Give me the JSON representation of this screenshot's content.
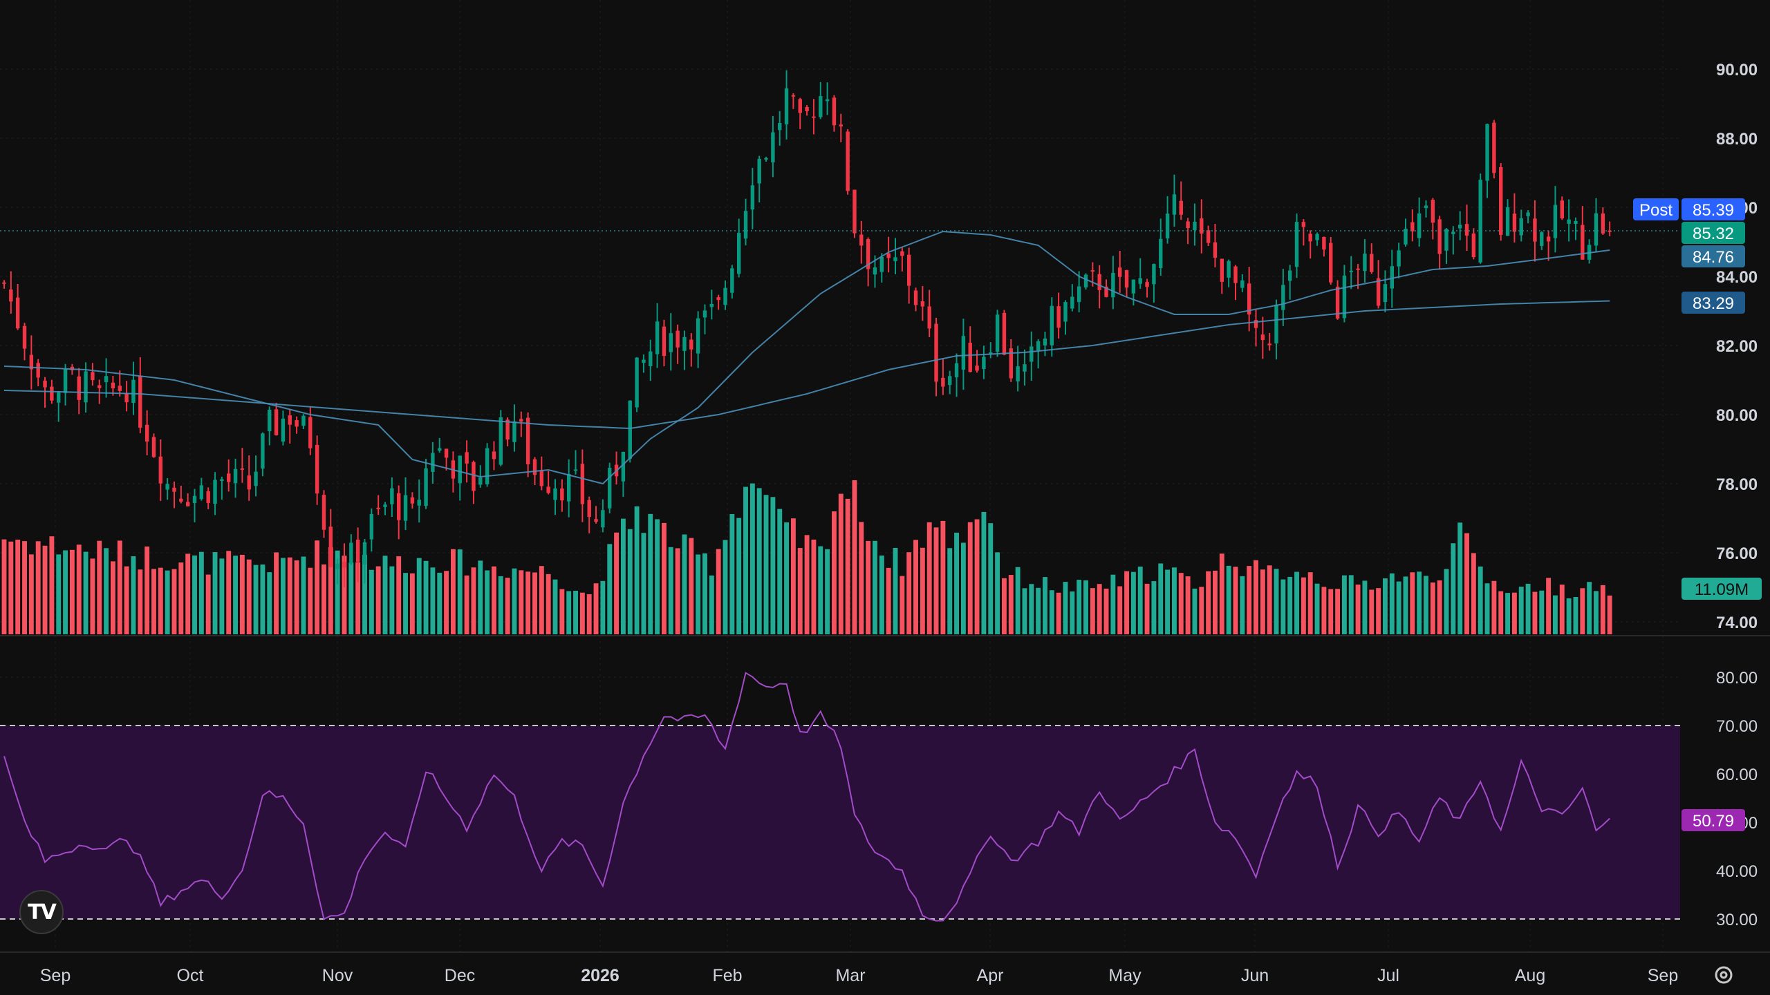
{
  "chart_data": [
    {
      "type": "candlestick",
      "panel": "price",
      "title": "",
      "y_range": [
        73.5,
        91.5
      ],
      "y_ticks": [
        "90.00",
        "88.00",
        "86.00",
        "84.00",
        "82.00",
        "80.00",
        "78.00",
        "76.00",
        "74.00"
      ],
      "x_labels": [
        {
          "label": "Sep",
          "bold": false
        },
        {
          "label": "Oct",
          "bold": false
        },
        {
          "label": "Nov",
          "bold": false
        },
        {
          "label": "Dec",
          "bold": false
        },
        {
          "label": "2026",
          "bold": true
        },
        {
          "label": "Feb",
          "bold": false
        },
        {
          "label": "Mar",
          "bold": false
        },
        {
          "label": "Apr",
          "bold": false
        },
        {
          "label": "May",
          "bold": false
        },
        {
          "label": "Jun",
          "bold": false
        },
        {
          "label": "Jul",
          "bold": false
        },
        {
          "label": "Aug",
          "bold": false
        },
        {
          "label": "Sep",
          "bold": false
        }
      ],
      "close_series": [
        [
          0,
          83.8
        ],
        [
          3,
          82.2
        ],
        [
          6,
          80.6
        ],
        [
          10,
          81.0
        ],
        [
          14,
          80.5
        ],
        [
          18,
          80.9
        ],
        [
          21,
          79.6
        ],
        [
          24,
          78.0
        ],
        [
          28,
          77.7
        ],
        [
          32,
          78.1
        ],
        [
          36,
          77.9
        ],
        [
          39,
          79.6
        ],
        [
          42,
          80.0
        ],
        [
          45,
          79.3
        ],
        [
          48,
          76.0
        ],
        [
          51,
          75.8
        ],
        [
          54,
          76.8
        ],
        [
          57,
          77.6
        ],
        [
          60,
          77.0
        ],
        [
          63,
          79.1
        ],
        [
          66,
          78.6
        ],
        [
          69,
          78.0
        ],
        [
          72,
          79.2
        ],
        [
          75,
          79.9
        ],
        [
          78,
          78.3
        ],
        [
          81,
          78.1
        ],
        [
          84,
          77.9
        ],
        [
          87,
          76.8
        ],
        [
          90,
          78.5
        ],
        [
          93,
          81.1
        ],
        [
          96,
          82.2
        ],
        [
          99,
          82.3
        ],
        [
          102,
          82.5
        ],
        [
          105,
          83.0
        ],
        [
          107,
          84.6
        ],
        [
          110,
          87.1
        ],
        [
          113,
          88.0
        ],
        [
          115,
          89.2
        ],
        [
          117,
          88.2
        ],
        [
          119,
          89.0
        ],
        [
          121,
          89.5
        ],
        [
          123,
          87.9
        ],
        [
          125,
          85.5
        ],
        [
          127,
          84.6
        ],
        [
          129,
          84.1
        ],
        [
          132,
          84.4
        ],
        [
          135,
          82.9
        ],
        [
          137,
          81.3
        ],
        [
          139,
          81.2
        ],
        [
          141,
          81.8
        ],
        [
          143,
          81.5
        ],
        [
          146,
          82.7
        ],
        [
          148,
          81.3
        ],
        [
          150,
          81.0
        ],
        [
          152,
          82.1
        ],
        [
          155,
          82.9
        ],
        [
          158,
          83.5
        ],
        [
          161,
          83.9
        ],
        [
          164,
          83.6
        ],
        [
          167,
          83.8
        ],
        [
          170,
          84.9
        ],
        [
          173,
          86.3
        ],
        [
          176,
          84.9
        ],
        [
          179,
          84.3
        ],
        [
          182,
          83.4
        ],
        [
          184,
          82.0
        ],
        [
          186,
          82.4
        ],
        [
          188,
          83.5
        ],
        [
          190,
          85.1
        ],
        [
          193,
          85.0
        ],
        [
          196,
          83.2
        ],
        [
          199,
          84.5
        ],
        [
          202,
          83.5
        ],
        [
          205,
          85.3
        ],
        [
          207,
          85.0
        ],
        [
          209,
          86.0
        ],
        [
          211,
          84.5
        ],
        [
          213,
          85.6
        ],
        [
          216,
          84.9
        ],
        [
          218,
          88.0
        ],
        [
          220,
          85.4
        ],
        [
          223,
          86.0
        ],
        [
          226,
          85.2
        ],
        [
          229,
          85.7
        ],
        [
          232,
          85.0
        ],
        [
          234,
          85.6
        ],
        [
          236,
          85.32
        ]
      ],
      "ma_50": [
        [
          0,
          81.4
        ],
        [
          12,
          81.3
        ],
        [
          25,
          81.0
        ],
        [
          35,
          80.5
        ],
        [
          45,
          80.0
        ],
        [
          55,
          79.7
        ],
        [
          60,
          78.7
        ],
        [
          70,
          78.2
        ],
        [
          80,
          78.4
        ],
        [
          88,
          78.0
        ],
        [
          95,
          79.3
        ],
        [
          102,
          80.2
        ],
        [
          110,
          81.8
        ],
        [
          120,
          83.5
        ],
        [
          130,
          84.7
        ],
        [
          138,
          85.3
        ],
        [
          145,
          85.2
        ],
        [
          152,
          84.9
        ],
        [
          158,
          84.0
        ],
        [
          165,
          83.4
        ],
        [
          172,
          82.9
        ],
        [
          180,
          82.9
        ],
        [
          188,
          83.2
        ],
        [
          195,
          83.6
        ],
        [
          203,
          83.9
        ],
        [
          210,
          84.2
        ],
        [
          218,
          84.3
        ],
        [
          226,
          84.5
        ],
        [
          236,
          84.76
        ]
      ],
      "ma_200": [
        [
          0,
          80.7
        ],
        [
          20,
          80.6
        ],
        [
          40,
          80.3
        ],
        [
          60,
          80.0
        ],
        [
          80,
          79.7
        ],
        [
          92,
          79.6
        ],
        [
          105,
          80.0
        ],
        [
          118,
          80.6
        ],
        [
          130,
          81.3
        ],
        [
          140,
          81.7
        ],
        [
          150,
          81.8
        ],
        [
          160,
          82.0
        ],
        [
          170,
          82.3
        ],
        [
          180,
          82.6
        ],
        [
          190,
          82.8
        ],
        [
          200,
          83.0
        ],
        [
          210,
          83.1
        ],
        [
          220,
          83.2
        ],
        [
          236,
          83.29
        ]
      ],
      "price_labels": [
        {
          "tag": "Post",
          "value": "85.39",
          "color": "#2962ff"
        },
        {
          "value": "85.32",
          "color": "#089981"
        },
        {
          "value": "84.76",
          "color": "#2a6f97"
        },
        {
          "value": "83.29",
          "color": "#1f5a8a"
        }
      ],
      "last_close": 85.32
    },
    {
      "type": "bar",
      "panel": "volume",
      "last_volume_label": "11.09M",
      "relative_heights": [
        [
          0,
          0.62
        ],
        [
          10,
          0.55
        ],
        [
          20,
          0.5
        ],
        [
          30,
          0.46
        ],
        [
          40,
          0.45
        ],
        [
          48,
          0.55
        ],
        [
          56,
          0.45
        ],
        [
          64,
          0.48
        ],
        [
          72,
          0.43
        ],
        [
          80,
          0.4
        ],
        [
          86,
          0.25
        ],
        [
          90,
          0.58
        ],
        [
          93,
          0.8
        ],
        [
          95,
          0.72
        ],
        [
          100,
          0.55
        ],
        [
          104,
          0.45
        ],
        [
          108,
          0.88
        ],
        [
          110,
          1.0
        ],
        [
          112,
          0.85
        ],
        [
          114,
          0.7
        ],
        [
          117,
          0.6
        ],
        [
          120,
          0.52
        ],
        [
          123,
          0.95
        ],
        [
          126,
          0.8
        ],
        [
          129,
          0.52
        ],
        [
          132,
          0.45
        ],
        [
          136,
          0.7
        ],
        [
          140,
          0.6
        ],
        [
          144,
          0.85
        ],
        [
          147,
          0.4
        ],
        [
          150,
          0.35
        ],
        [
          155,
          0.3
        ],
        [
          160,
          0.3
        ],
        [
          165,
          0.35
        ],
        [
          170,
          0.42
        ],
        [
          175,
          0.32
        ],
        [
          180,
          0.5
        ],
        [
          185,
          0.38
        ],
        [
          190,
          0.42
        ],
        [
          195,
          0.33
        ],
        [
          200,
          0.32
        ],
        [
          205,
          0.38
        ],
        [
          210,
          0.35
        ],
        [
          214,
          0.62
        ],
        [
          218,
          0.35
        ],
        [
          222,
          0.28
        ],
        [
          226,
          0.32
        ],
        [
          230,
          0.28
        ],
        [
          236,
          0.3
        ]
      ]
    },
    {
      "type": "line",
      "panel": "rsi",
      "y_range": [
        26,
        84
      ],
      "y_ticks": [
        "80.00",
        "70.00",
        "60.00",
        "50.00",
        "40.00",
        "30.00"
      ],
      "upper_band": 70,
      "lower_band": 30,
      "last_value_label": "50.79",
      "values": [
        [
          0,
          63
        ],
        [
          3,
          50
        ],
        [
          6,
          42
        ],
        [
          9,
          44
        ],
        [
          12,
          46
        ],
        [
          15,
          44
        ],
        [
          18,
          47
        ],
        [
          21,
          40
        ],
        [
          23,
          33
        ],
        [
          26,
          36
        ],
        [
          29,
          38
        ],
        [
          32,
          35
        ],
        [
          35,
          40
        ],
        [
          38,
          56
        ],
        [
          41,
          55
        ],
        [
          44,
          50
        ],
        [
          47,
          30
        ],
        [
          50,
          31
        ],
        [
          53,
          43
        ],
        [
          56,
          48
        ],
        [
          59,
          44
        ],
        [
          62,
          61
        ],
        [
          65,
          55
        ],
        [
          68,
          49
        ],
        [
          72,
          60
        ],
        [
          75,
          55
        ],
        [
          79,
          40
        ],
        [
          82,
          46
        ],
        [
          85,
          45
        ],
        [
          88,
          37
        ],
        [
          91,
          54
        ],
        [
          94,
          64
        ],
        [
          97,
          72
        ],
        [
          100,
          71
        ],
        [
          103,
          72
        ],
        [
          106,
          65
        ],
        [
          109,
          81
        ],
        [
          112,
          78
        ],
        [
          115,
          79
        ],
        [
          117,
          68
        ],
        [
          120,
          72
        ],
        [
          123,
          66
        ],
        [
          125,
          51
        ],
        [
          128,
          44
        ],
        [
          132,
          40
        ],
        [
          135,
          31
        ],
        [
          138,
          30
        ],
        [
          141,
          36
        ],
        [
          145,
          48
        ],
        [
          148,
          42
        ],
        [
          152,
          46
        ],
        [
          155,
          52
        ],
        [
          158,
          48
        ],
        [
          161,
          57
        ],
        [
          164,
          50
        ],
        [
          167,
          54
        ],
        [
          171,
          59
        ],
        [
          175,
          65
        ],
        [
          178,
          50
        ],
        [
          181,
          47
        ],
        [
          184,
          39
        ],
        [
          187,
          52
        ],
        [
          190,
          60
        ],
        [
          193,
          58
        ],
        [
          196,
          41
        ],
        [
          199,
          53
        ],
        [
          202,
          48
        ],
        [
          205,
          52
        ],
        [
          208,
          46
        ],
        [
          211,
          55
        ],
        [
          214,
          50
        ],
        [
          217,
          59
        ],
        [
          220,
          48
        ],
        [
          223,
          62
        ],
        [
          226,
          53
        ],
        [
          229,
          51
        ],
        [
          232,
          57
        ],
        [
          234,
          48
        ],
        [
          236,
          50.79
        ]
      ]
    }
  ],
  "ui": {
    "logo_text": "TV",
    "colors": {
      "up": "#089981",
      "down": "#f23645",
      "up_volume": "#22ab94",
      "down_volume": "#f7525f",
      "ma": "#4a8fb8",
      "rsi": "#a24cc8",
      "rsi_band": "#2a0f3a",
      "background": "#0f0f0f",
      "grid": "#1f1f1f",
      "text": "#d1d4dc"
    }
  }
}
